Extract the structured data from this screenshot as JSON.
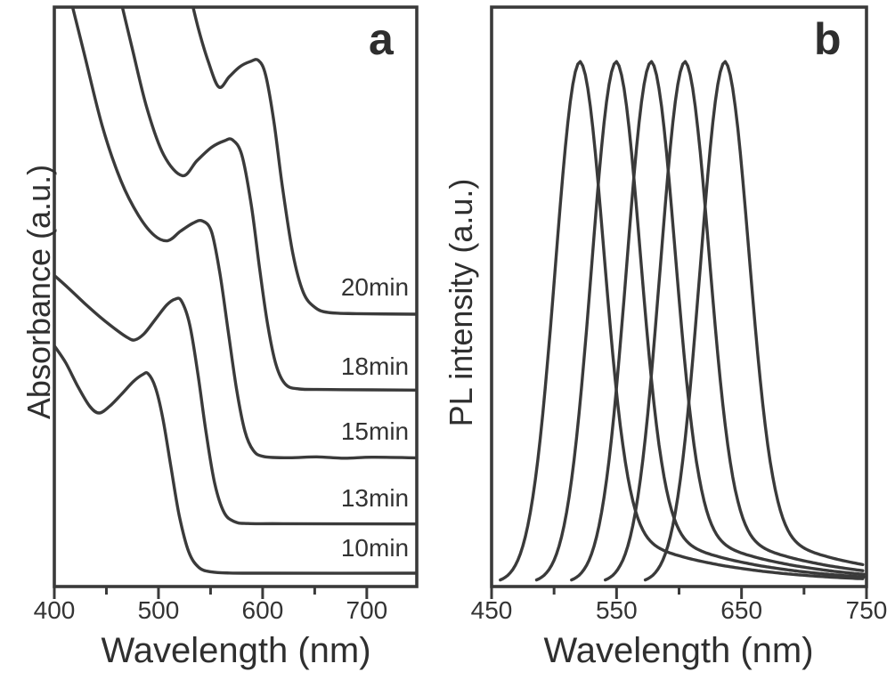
{
  "figure_type": "two-panel spectra figure",
  "colors": {
    "line_color": "#3a3a3a",
    "text_color": "#333333",
    "background": "#ffffff"
  },
  "chart_data": [
    {
      "panel_label": "a",
      "type": "line",
      "xlabel": "Wavelength (nm)",
      "ylabel": "Absorbance (a.u.)",
      "x_range": [
        400,
        748
      ],
      "x_ticks_major": [
        400,
        500,
        600,
        700
      ],
      "x_tick_labels": [
        "400",
        "500",
        "600",
        "700"
      ],
      "x_ticks_minor": [
        450,
        550,
        650
      ],
      "y_axis_note": "arbitrary units, no ticks; curves vertically offset (stacked)",
      "grid": false,
      "legend": "inline labels at right of each curve",
      "series": [
        {
          "label": "20min",
          "first_exciton_peak_nm": 596,
          "valley_nm": 558,
          "plateau_level": 0.47,
          "points": [
            [
              528,
              1.04
            ],
            [
              538,
              0.965
            ],
            [
              548,
              0.905
            ],
            [
              558,
              0.862
            ],
            [
              568,
              0.88
            ],
            [
              578,
              0.897
            ],
            [
              588,
              0.906
            ],
            [
              596,
              0.908
            ],
            [
              603,
              0.882
            ],
            [
              611,
              0.8
            ],
            [
              619,
              0.69
            ],
            [
              629,
              0.575
            ],
            [
              639,
              0.508
            ],
            [
              650,
              0.482
            ],
            [
              663,
              0.473
            ],
            [
              690,
              0.471
            ],
            [
              748,
              0.47
            ]
          ]
        },
        {
          "label": "18min",
          "first_exciton_peak_nm": 571,
          "valley_nm": 523,
          "plateau_level": 0.339,
          "points": [
            [
              460,
              1.04
            ],
            [
              474,
              0.935
            ],
            [
              489,
              0.825
            ],
            [
              505,
              0.745
            ],
            [
              523,
              0.709
            ],
            [
              537,
              0.735
            ],
            [
              551,
              0.758
            ],
            [
              563,
              0.769
            ],
            [
              571,
              0.771
            ],
            [
              580,
              0.745
            ],
            [
              589,
              0.66
            ],
            [
              597,
              0.55
            ],
            [
              605,
              0.45
            ],
            [
              613,
              0.382
            ],
            [
              622,
              0.349
            ],
            [
              635,
              0.341
            ],
            [
              665,
              0.34
            ],
            [
              748,
              0.339
            ]
          ]
        },
        {
          "label": "15min",
          "first_exciton_peak_nm": 542,
          "valley_nm": 509,
          "plateau_level": 0.222,
          "points": [
            [
              412,
              1.04
            ],
            [
              428,
              0.925
            ],
            [
              446,
              0.795
            ],
            [
              464,
              0.7
            ],
            [
              481,
              0.64
            ],
            [
              496,
              0.606
            ],
            [
              509,
              0.597
            ],
            [
              521,
              0.613
            ],
            [
              533,
              0.627
            ],
            [
              542,
              0.631
            ],
            [
              551,
              0.612
            ],
            [
              559,
              0.54
            ],
            [
              567,
              0.44
            ],
            [
              575,
              0.34
            ],
            [
              583,
              0.268
            ],
            [
              591,
              0.235
            ],
            [
              601,
              0.2245
            ],
            [
              625,
              0.2222
            ],
            [
              652,
              0.2238
            ],
            [
              678,
              0.2215
            ],
            [
              705,
              0.2232
            ],
            [
              748,
              0.222
            ]
          ]
        },
        {
          "label": "13min",
          "first_exciton_peak_nm": 519,
          "valley_nm": 477,
          "plateau_level": 0.108,
          "points": [
            [
              400,
              0.537
            ],
            [
              413,
              0.516
            ],
            [
              429,
              0.489
            ],
            [
              446,
              0.462
            ],
            [
              461,
              0.441
            ],
            [
              470,
              0.43
            ],
            [
              477,
              0.4255
            ],
            [
              486,
              0.436
            ],
            [
              497,
              0.461
            ],
            [
              508,
              0.486
            ],
            [
              516,
              0.496
            ],
            [
              522,
              0.493
            ],
            [
              530,
              0.452
            ],
            [
              538,
              0.365
            ],
            [
              546,
              0.262
            ],
            [
              554,
              0.178
            ],
            [
              563,
              0.128
            ],
            [
              573,
              0.112
            ],
            [
              586,
              0.1088
            ],
            [
              620,
              0.1085
            ],
            [
              748,
              0.108
            ]
          ]
        },
        {
          "label": "10min",
          "first_exciton_peak_nm": 489,
          "valley_nm": 443,
          "plateau_level": 0.023,
          "points": [
            [
              400,
              0.4155
            ],
            [
              411,
              0.386
            ],
            [
              423,
              0.344
            ],
            [
              434,
              0.311
            ],
            [
              443,
              0.2995
            ],
            [
              453,
              0.311
            ],
            [
              464,
              0.331
            ],
            [
              476,
              0.354
            ],
            [
              485,
              0.366
            ],
            [
              490,
              0.3675
            ],
            [
              497,
              0.344
            ],
            [
              504,
              0.292
            ],
            [
              512,
              0.206
            ],
            [
              520,
              0.122
            ],
            [
              529,
              0.06
            ],
            [
              539,
              0.0325
            ],
            [
              551,
              0.0252
            ],
            [
              568,
              0.0233
            ],
            [
              605,
              0.023
            ],
            [
              748,
              0.023
            ]
          ]
        }
      ]
    },
    {
      "panel_label": "b",
      "type": "line",
      "xlabel": "Wavelength (nm)",
      "ylabel": "PL intensity (a.u.)",
      "x_range": [
        450,
        750
      ],
      "x_ticks_major": [
        450,
        550,
        650,
        750
      ],
      "x_tick_labels": [
        "450",
        "550",
        "650",
        "750"
      ],
      "x_ticks_minor": [
        500,
        600,
        700
      ],
      "grid": false,
      "legend": "none",
      "series": [
        {
          "peak_nm": 521,
          "rel_height": 0.9
        },
        {
          "peak_nm": 550,
          "rel_height": 0.9
        },
        {
          "peak_nm": 578,
          "rel_height": 0.9
        },
        {
          "peak_nm": 605,
          "rel_height": 0.9
        },
        {
          "peak_nm": 637,
          "rel_height": 0.9
        }
      ],
      "lineshape": {
        "sigma_left_nm": 20,
        "sigma_right_nm": 19,
        "gauss_fraction": 0.86,
        "tail_fraction": 0.14,
        "tail_decay_nm": 80,
        "baseline": 0.006
      }
    }
  ]
}
